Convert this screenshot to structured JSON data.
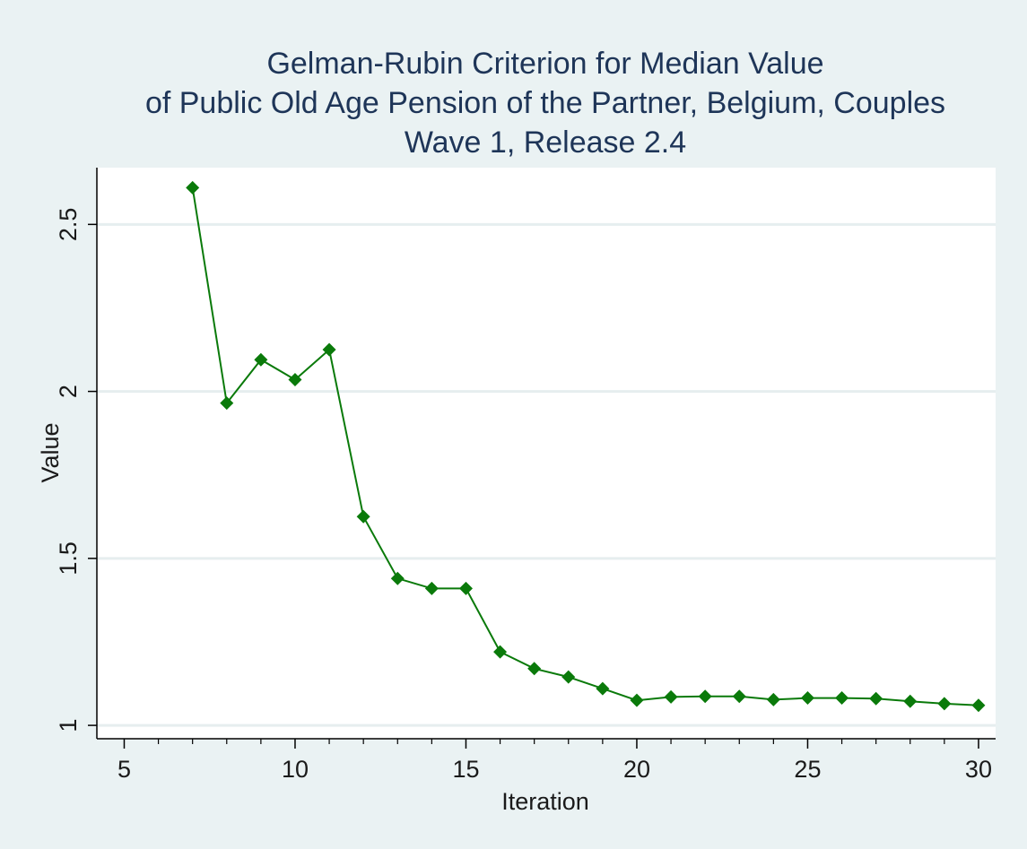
{
  "chart_data": {
    "type": "line",
    "title_lines": [
      "Gelman-Rubin Criterion for Median Value",
      "of  Public Old Age Pension of the Partner, Belgium, Couples",
      "Wave 1, Release 2.4"
    ],
    "xlabel": "Iteration",
    "ylabel": "Value",
    "xlim": [
      4.2,
      30.5
    ],
    "ylim": [
      0.96,
      2.67
    ],
    "x_ticks": [
      5,
      10,
      15,
      20,
      25,
      30
    ],
    "x_tick_labels": [
      "5",
      "10",
      "15",
      "20",
      "25",
      "30"
    ],
    "x_minor_ticks": [
      6,
      7,
      8,
      9,
      11,
      12,
      13,
      14,
      16,
      17,
      18,
      19,
      21,
      22,
      23,
      24,
      26,
      27,
      28,
      29
    ],
    "y_ticks": [
      1,
      1.5,
      2,
      2.5
    ],
    "y_tick_labels": [
      "1",
      "1.5",
      "2",
      "2.5"
    ],
    "grid": "horizontal",
    "series": [
      {
        "color": "#0a7a0a",
        "marker": "diamond",
        "x": [
          7,
          8,
          9,
          10,
          11,
          12,
          13,
          14,
          15,
          16,
          17,
          18,
          19,
          20,
          21,
          22,
          23,
          24,
          25,
          26,
          27,
          28,
          29,
          30
        ],
        "y": [
          2.61,
          1.965,
          2.095,
          2.035,
          2.125,
          1.625,
          1.44,
          1.41,
          1.41,
          1.22,
          1.17,
          1.145,
          1.11,
          1.075,
          1.085,
          1.087,
          1.087,
          1.077,
          1.082,
          1.082,
          1.08,
          1.072,
          1.065,
          1.06
        ]
      }
    ]
  }
}
